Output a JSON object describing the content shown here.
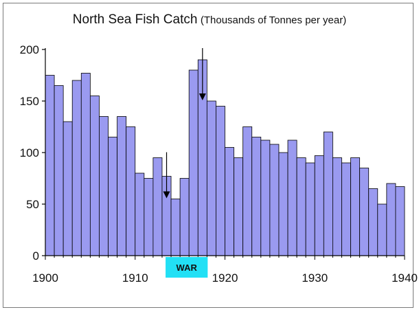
{
  "chart_data": {
    "type": "bar",
    "title": "North Sea Fish Catch",
    "subtitle": "(Thousands of Tonnes per year)",
    "xlabel": "",
    "ylabel": "",
    "x": [
      1900,
      1901,
      1902,
      1903,
      1904,
      1905,
      1906,
      1907,
      1908,
      1909,
      1910,
      1911,
      1912,
      1913,
      1914,
      1915,
      1916,
      1917,
      1918,
      1919,
      1920,
      1921,
      1922,
      1923,
      1924,
      1925,
      1926,
      1927,
      1928,
      1929,
      1930,
      1931,
      1932,
      1933,
      1934,
      1935,
      1936,
      1937,
      1938,
      1939
    ],
    "values": [
      175,
      165,
      130,
      170,
      177,
      155,
      135,
      115,
      135,
      125,
      80,
      75,
      95,
      77,
      55,
      75,
      180,
      190,
      150,
      145,
      105,
      95,
      125,
      115,
      112,
      108,
      100,
      112,
      95,
      90,
      97,
      120,
      95,
      90,
      95,
      85,
      65,
      50,
      70,
      67
    ],
    "ylim": [
      0,
      200
    ],
    "yticks": [
      0,
      50,
      100,
      150,
      200
    ],
    "xticks": [
      "1900",
      "1910",
      "1920",
      "1930",
      "1940"
    ],
    "xlim": [
      1900,
      1940
    ],
    "grid": false,
    "bar_color": "#9a9af0",
    "bar_edge_color": "#000000",
    "war_label": "WAR",
    "war_label_color": "#22e0f5",
    "war_period": [
      1914,
      1918
    ],
    "arrows": [
      {
        "x": 1913.5,
        "points_to": 55
      },
      {
        "x": 1917.5,
        "points_to": 150
      }
    ]
  }
}
